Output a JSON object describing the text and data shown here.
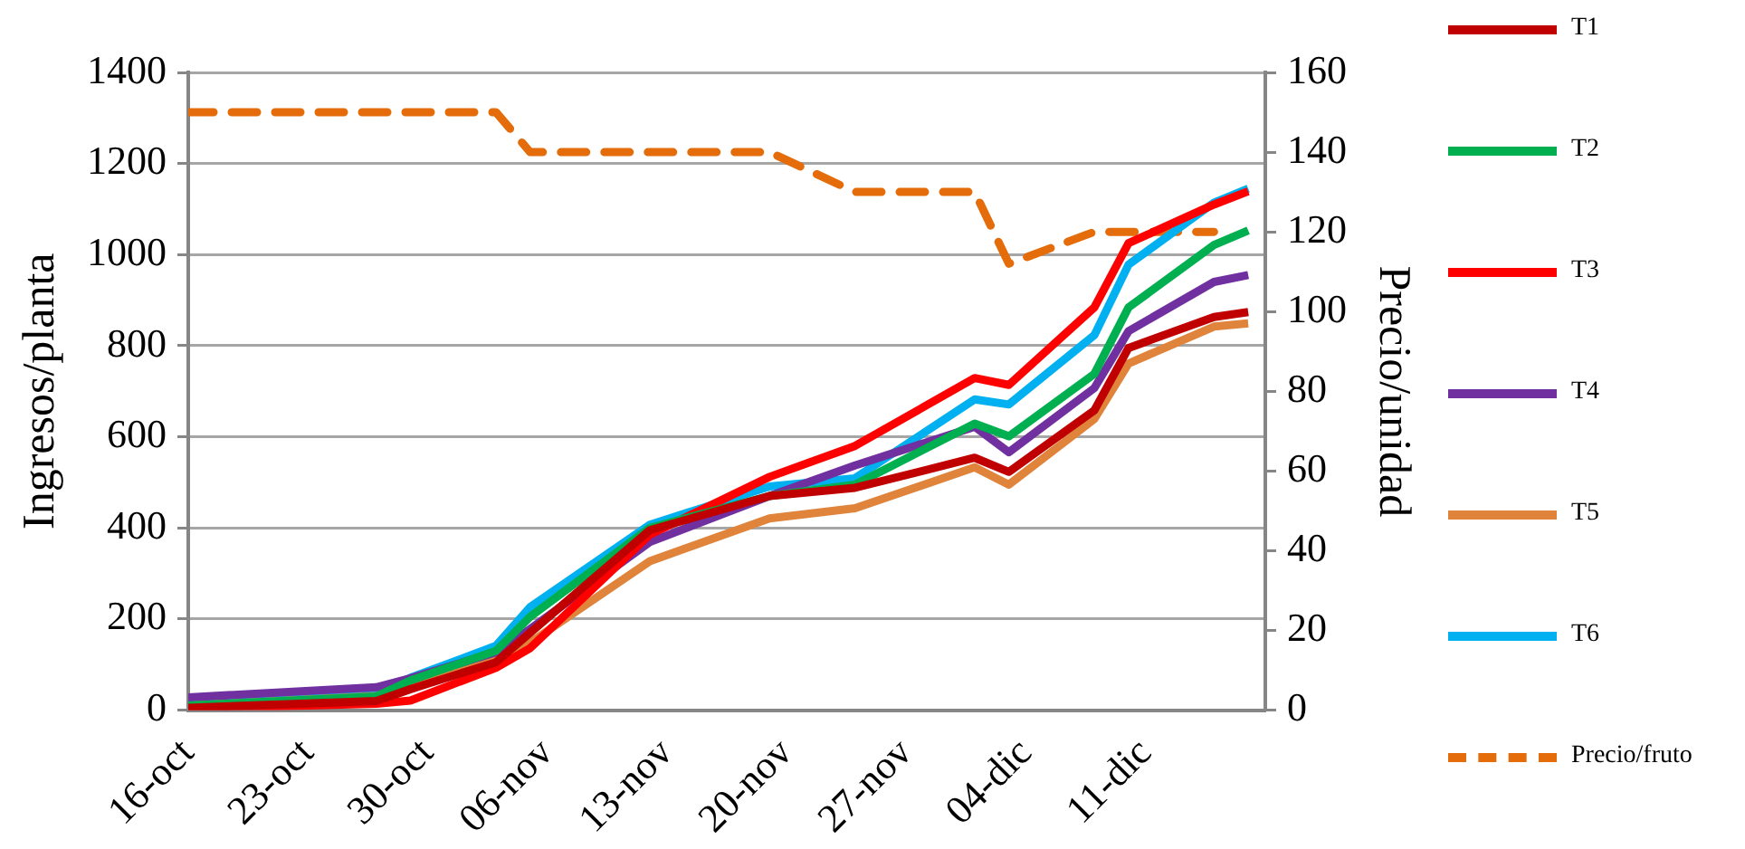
{
  "chart_data": {
    "type": "line",
    "ylabel": "Ingresos/planta",
    "y2label": "Precio/unidad",
    "x": [
      "--10-16",
      "--10-27",
      "--10-29",
      "--11-03",
      "--11-05",
      "--11-12",
      "--11-19",
      "--11-24",
      "--12-01",
      "--12-03",
      "--12-08",
      "--12-10",
      "--12-15",
      "--12-17"
    ],
    "series": [
      {
        "name": "T1",
        "color": "#c00000",
        "values": [
          5,
          20,
          46,
          105,
          170,
          395,
          470,
          488,
          554,
          523,
          658,
          795,
          863,
          874
        ]
      },
      {
        "name": "T2",
        "color": "#00b050",
        "values": [
          10,
          30,
          65,
          130,
          205,
          400,
          470,
          495,
          629,
          601,
          738,
          884,
          1021,
          1053
        ]
      },
      {
        "name": "T3",
        "color": "#ff0000",
        "values": [
          3,
          14,
          21,
          93,
          136,
          385,
          512,
          580,
          729,
          714,
          884,
          1025,
          1110,
          1139
        ]
      },
      {
        "name": "T4",
        "color": "#7030a0",
        "values": [
          28,
          50,
          70,
          127,
          178,
          369,
          470,
          537,
          622,
          566,
          707,
          832,
          940,
          955
        ]
      },
      {
        "name": "T5",
        "color": "#e0843c",
        "values": [
          10,
          31,
          57,
          114,
          148,
          327,
          421,
          443,
          533,
          495,
          639,
          761,
          842,
          849
        ]
      },
      {
        "name": "T6",
        "color": "#00b0f0",
        "values": [
          14,
          35,
          71,
          141,
          226,
          407,
          491,
          509,
          682,
          671,
          823,
          978,
          1114,
          1145
        ]
      },
      {
        "name": "Precio/fruto",
        "color": "#e46c0a",
        "axis": "y2",
        "line_style": "dashed",
        "x": [
          "--10-16",
          "--11-03",
          "--11-05",
          "--11-19",
          "--11-24",
          "--12-01",
          "--12-03",
          "--12-08",
          "--12-15"
        ],
        "values": [
          150,
          150,
          140,
          140,
          130,
          130,
          112,
          120,
          120
        ]
      }
    ],
    "xlim": [
      "--10-16",
      "--12-18"
    ],
    "xticks": [
      {
        "value": "--10-16",
        "label": "16-oct"
      },
      {
        "value": "--10-23",
        "label": "23-oct"
      },
      {
        "value": "--10-30",
        "label": "30-oct"
      },
      {
        "value": "--11-06",
        "label": "06-nov"
      },
      {
        "value": "--11-13",
        "label": "13-nov"
      },
      {
        "value": "--11-20",
        "label": "20-nov"
      },
      {
        "value": "--11-27",
        "label": "27-nov"
      },
      {
        "value": "--12-04",
        "label": "04-dic"
      },
      {
        "value": "--12-11",
        "label": "11-dic"
      },
      {
        "value": "--12-18",
        "label": null
      }
    ],
    "ylim": [
      0,
      1400
    ],
    "yticks": [
      0,
      200,
      400,
      600,
      800,
      1000,
      1200,
      1400
    ],
    "y2lim": [
      0,
      160
    ],
    "y2ticks": [
      0,
      20,
      40,
      60,
      80,
      100,
      120,
      140,
      160
    ],
    "grid": "y",
    "legend": "right",
    "marker": "none",
    "line_style": "solid"
  }
}
